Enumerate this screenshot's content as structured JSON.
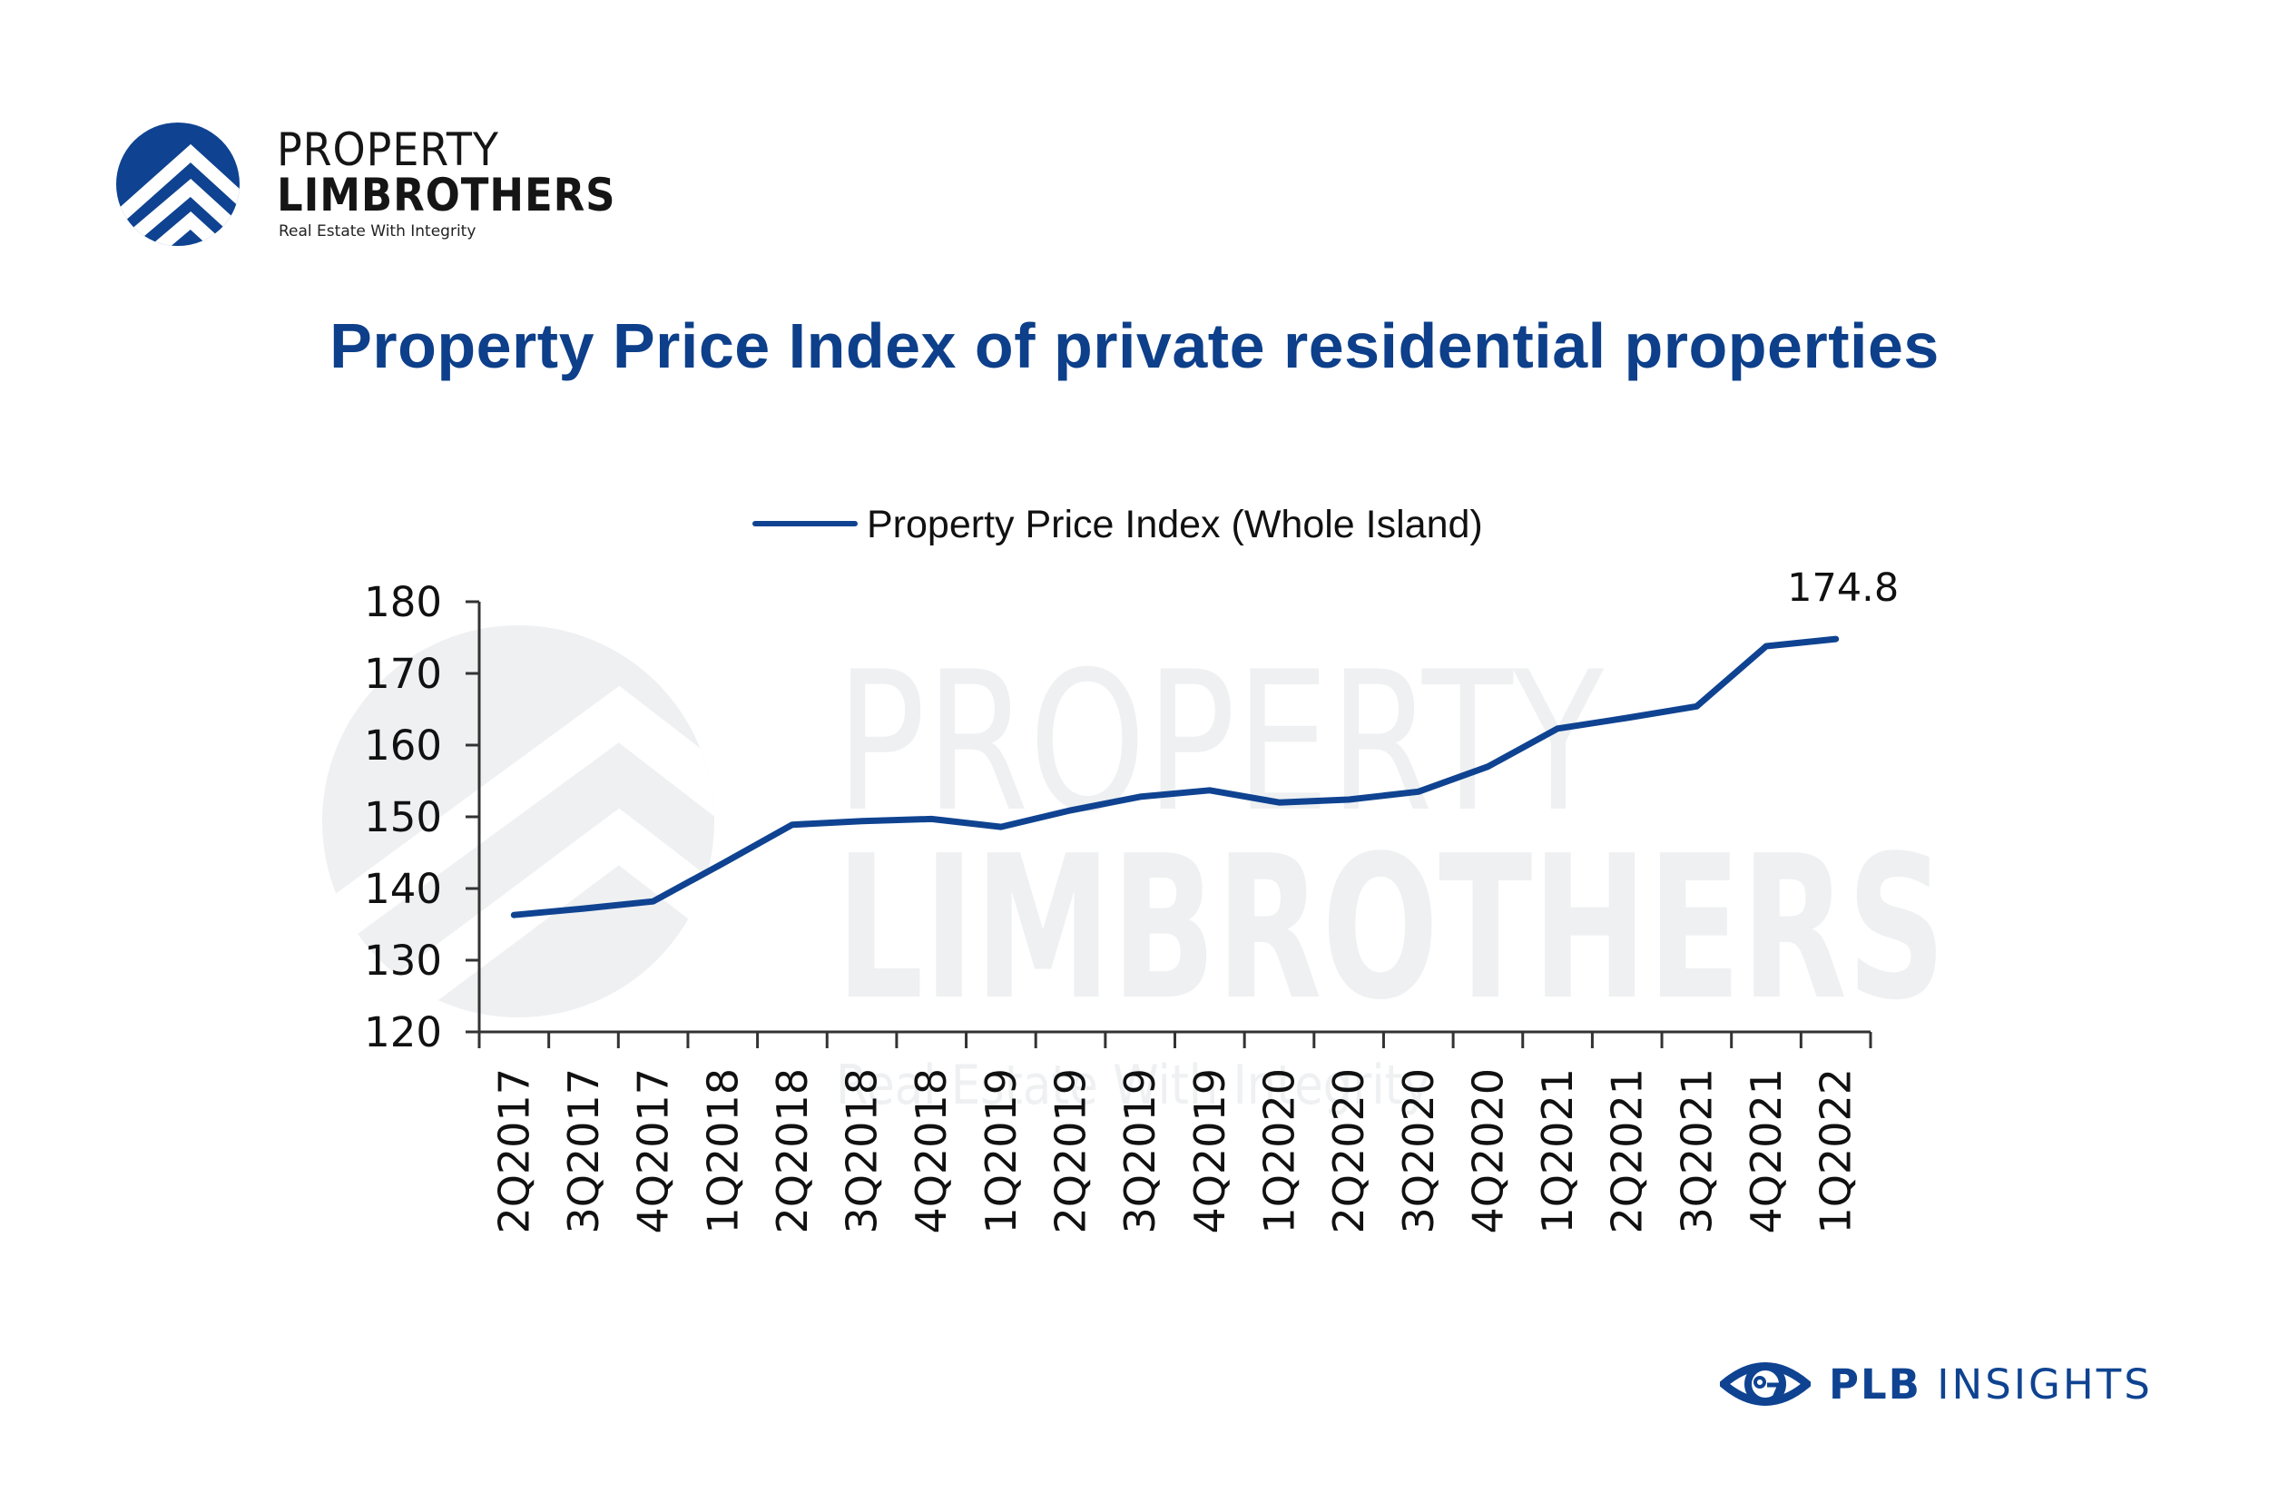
{
  "brand": {
    "name_line1": "PROPERTY",
    "name_line2": "LIMBROTHERS",
    "tagline": "Real Estate With Integrity",
    "logo_icon": "circle-chevrons-logo-icon",
    "color": "#0f4391"
  },
  "watermark": {
    "line1": "PROPERTY",
    "line2": "LIMBROTHERS",
    "line3": "Real Estate With Integrity",
    "color": "#eef0f2"
  },
  "title": "Property Price Index of private residential properties",
  "footer": {
    "icon": "eye-logo-icon",
    "label_bold": "PLB",
    "label_rest": "INSIGHTS"
  },
  "chart_data": {
    "type": "line",
    "title": "Property Price Index of private residential properties",
    "xlabel": "",
    "ylabel": "",
    "ylim": [
      120,
      180
    ],
    "yticks": [
      120,
      130,
      140,
      150,
      160,
      170,
      180
    ],
    "grid": false,
    "legend_position": "top-center",
    "categories": [
      "2Q2017",
      "3Q2017",
      "4Q2017",
      "1Q2018",
      "2Q2018",
      "3Q2018",
      "4Q2018",
      "1Q2019",
      "2Q2019",
      "3Q2019",
      "4Q2019",
      "1Q2020",
      "2Q2020",
      "3Q2020",
      "4Q2020",
      "1Q2021",
      "2Q2021",
      "3Q2021",
      "4Q2021",
      "1Q2022"
    ],
    "series": [
      {
        "name": "Property Price Index (Whole Island)",
        "color": "#0f4391",
        "values": [
          136.3,
          137.2,
          138.2,
          143.5,
          148.9,
          149.4,
          149.7,
          148.6,
          150.9,
          152.8,
          153.7,
          152.0,
          152.4,
          153.5,
          157.0,
          162.3,
          163.8,
          165.4,
          173.8,
          174.8
        ]
      }
    ],
    "annotations": [
      {
        "category": "1Q2022",
        "text": "174.8"
      }
    ]
  }
}
